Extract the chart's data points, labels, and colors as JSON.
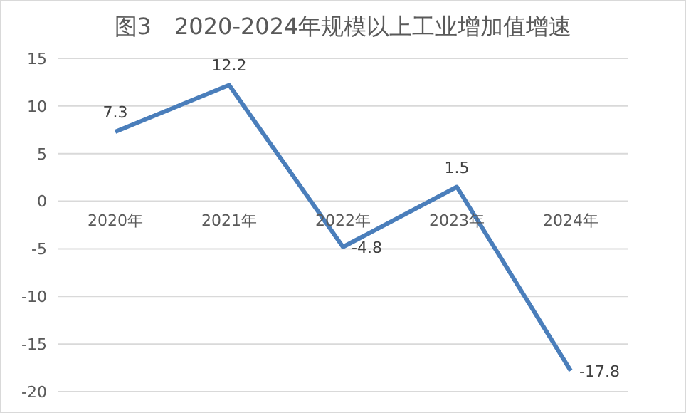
{
  "chart_data": {
    "type": "line",
    "title": "图3　2020-2024年规模以上工业增加值增速",
    "categories": [
      "2020年",
      "2021年",
      "2022年",
      "2023年",
      "2024年"
    ],
    "series": [
      {
        "color": "#4a7ebb",
        "values": [
          7.3,
          12.2,
          -4.8,
          1.5,
          -17.8
        ]
      }
    ],
    "ylim": [
      -20,
      15
    ],
    "yticks": [
      -20,
      -15,
      -10,
      -5,
      0,
      5,
      10,
      15
    ],
    "grid": "y",
    "data_labels": true,
    "marker": "none",
    "line_style": "solid",
    "legend": false
  }
}
